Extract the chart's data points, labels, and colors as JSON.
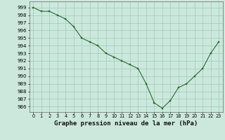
{
  "x": [
    0,
    1,
    2,
    3,
    4,
    5,
    6,
    7,
    8,
    9,
    10,
    11,
    12,
    13,
    14,
    15,
    16,
    17,
    18,
    19,
    20,
    21,
    22,
    23
  ],
  "y": [
    999.0,
    998.5,
    998.5,
    998.0,
    997.5,
    996.5,
    995.0,
    994.5,
    994.0,
    993.0,
    992.5,
    992.0,
    991.5,
    991.0,
    989.0,
    986.5,
    985.8,
    986.8,
    988.5,
    989.0,
    990.0,
    991.0,
    993.0,
    994.5
  ],
  "ylim_bottom": 985.3,
  "ylim_top": 999.8,
  "yticks": [
    986,
    987,
    988,
    989,
    990,
    991,
    992,
    993,
    994,
    995,
    996,
    997,
    998,
    999
  ],
  "xticks": [
    0,
    1,
    2,
    3,
    4,
    5,
    6,
    7,
    8,
    9,
    10,
    11,
    12,
    13,
    14,
    15,
    16,
    17,
    18,
    19,
    20,
    21,
    22,
    23
  ],
  "line_color": "#2d6a2d",
  "marker_color": "#2d6a2d",
  "bg_color": "#cce8dd",
  "grid_color": "#99ccbb",
  "xlabel": "Graphe pression niveau de la mer (hPa)",
  "xlabel_fontsize": 6.5,
  "tick_fontsize": 5.0
}
